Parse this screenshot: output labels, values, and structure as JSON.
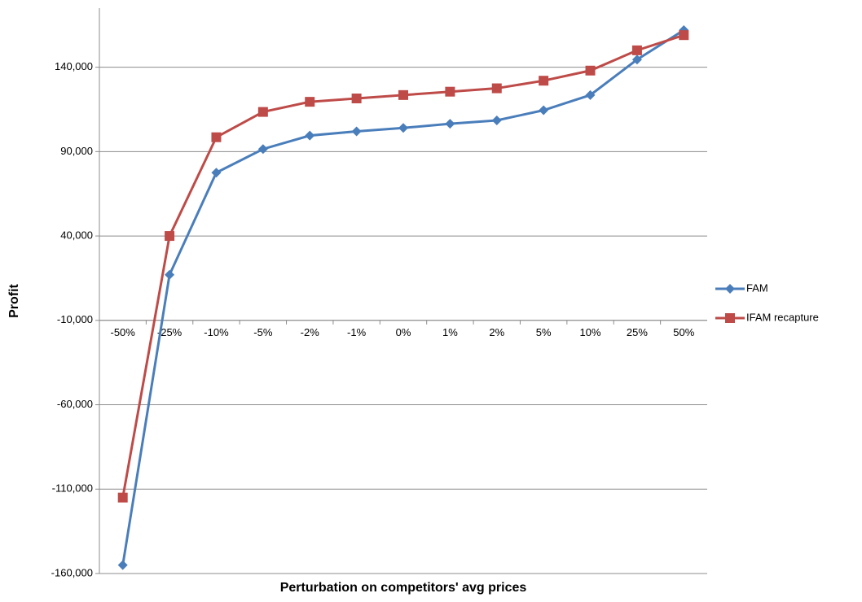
{
  "chart_data": {
    "type": "line",
    "x_label": "Perturbation on competitors' avg prices",
    "y_label": "Profit",
    "categories": [
      "-50%",
      "-25%",
      "-10%",
      "-5%",
      "-2%",
      "-1%",
      "0%",
      "1%",
      "2%",
      "5%",
      "10%",
      "25%",
      "50%"
    ],
    "series": [
      {
        "name": "FAM",
        "color": "#4a7ebb",
        "marker": "diamond",
        "values": [
          -155000,
          17000,
          77500,
          91500,
          99500,
          102000,
          104000,
          106500,
          108500,
          114500,
          123500,
          144500,
          162000
        ]
      },
      {
        "name": "IFAM recapture",
        "color": "#be4b48",
        "marker": "square",
        "values": [
          -115000,
          40000,
          98500,
          113500,
          119500,
          121500,
          123500,
          125500,
          127500,
          132000,
          138000,
          150000,
          159000
        ]
      }
    ],
    "ylim": [
      -160000,
      175000
    ],
    "yticks": [
      {
        "value": -160000,
        "label": "-160,000"
      },
      {
        "value": -110000,
        "label": "-110,000"
      },
      {
        "value": -60000,
        "label": "-60,000"
      },
      {
        "value": -10000,
        "label": "-10,000"
      },
      {
        "value": 40000,
        "label": "40,000"
      },
      {
        "value": 90000,
        "label": "90,000"
      },
      {
        "value": 140000,
        "label": "140,000"
      }
    ],
    "x_axis_crosses": -10000,
    "grid": true,
    "legend": "right"
  }
}
